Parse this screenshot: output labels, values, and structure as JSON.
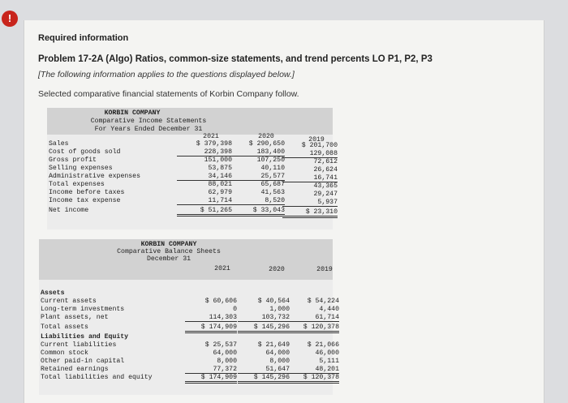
{
  "alert_icon": "!",
  "header": {
    "required": "Required information",
    "problem": "Problem 17-2A (Algo) Ratios, common-size statements, and trend percents LO P1, P2, P3",
    "note": "[The following information applies to the questions displayed below.]",
    "selected": "Selected comparative financial statements of Korbin Company follow."
  },
  "income": {
    "company": "KORBIN COMPANY",
    "title": "Comparative Income Statements",
    "period": "For Years Ended December 31",
    "years": [
      "2021",
      "2020",
      "2019"
    ],
    "rows": [
      {
        "label": "Sales",
        "v": [
          "$ 379,398",
          "$ 290,650",
          "$ 201,700"
        ]
      },
      {
        "label": "Cost of goods sold",
        "v": [
          "228,398",
          "183,400",
          "129,088"
        ]
      },
      {
        "label": "Gross profit",
        "v": [
          "151,000",
          "107,250",
          "72,612"
        ]
      },
      {
        "label": "Selling expenses",
        "v": [
          "53,875",
          "40,110",
          "26,624"
        ]
      },
      {
        "label": "Administrative expenses",
        "v": [
          "34,146",
          "25,577",
          "16,741"
        ]
      },
      {
        "label": "Total expenses",
        "v": [
          "88,021",
          "65,687",
          "43,365"
        ]
      },
      {
        "label": "Income before taxes",
        "v": [
          "62,979",
          "41,563",
          "29,247"
        ]
      },
      {
        "label": "Income tax expense",
        "v": [
          "11,714",
          "8,520",
          "5,937"
        ]
      },
      {
        "label": "Net income",
        "v": [
          "$ 51,265",
          "$ 33,043",
          "$ 23,310"
        ]
      }
    ]
  },
  "balance": {
    "company": "KORBIN COMPANY",
    "title": "Comparative Balance Sheets",
    "period": "December 31",
    "years": [
      "2021",
      "2020",
      "2019"
    ],
    "rows": [
      {
        "label": "Assets",
        "v": [
          "",
          "",
          ""
        ]
      },
      {
        "label": "Current assets",
        "v": [
          "$ 60,606",
          "$ 40,564",
          "$ 54,224"
        ]
      },
      {
        "label": "Long-term investments",
        "v": [
          "0",
          "1,000",
          "4,440"
        ]
      },
      {
        "label": "Plant assets, net",
        "v": [
          "114,303",
          "103,732",
          "61,714"
        ]
      },
      {
        "label": "Total assets",
        "v": [
          "$ 174,909",
          "$ 145,296",
          "$ 120,378"
        ]
      },
      {
        "label": "Liabilities and Equity",
        "v": [
          "",
          "",
          ""
        ]
      },
      {
        "label": "Current liabilities",
        "v": [
          "$ 25,537",
          "$ 21,649",
          "$ 21,066"
        ]
      },
      {
        "label": "Common stock",
        "v": [
          "64,000",
          "64,000",
          "46,000"
        ]
      },
      {
        "label": "Other paid-in capital",
        "v": [
          "8,000",
          "8,000",
          "5,111"
        ]
      },
      {
        "label": "Retained earnings",
        "v": [
          "77,372",
          "51,647",
          "48,201"
        ]
      },
      {
        "label": "Total liabilities and equity",
        "v": [
          "$ 174,909",
          "$ 145,296",
          "$ 120,378"
        ]
      }
    ]
  }
}
